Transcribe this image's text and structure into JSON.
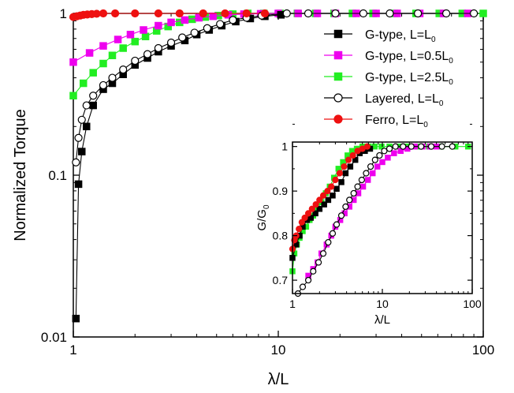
{
  "chart_data": [
    {
      "type": "line",
      "xlabel": "λ/L",
      "ylabel": "Normalized Torque",
      "xscale": "log",
      "yscale": "log",
      "xlim": [
        1,
        100
      ],
      "ylim": [
        0.01,
        1
      ],
      "xticks": [
        "1",
        "10",
        "100"
      ],
      "yticks": [
        "0.01",
        "0.1",
        "1"
      ],
      "grid": false,
      "legend_position": "top-right",
      "series": [
        {
          "name": "G-type, L=L0",
          "label_main": "G-type, L=L",
          "label_sub": "0",
          "color": "#000000",
          "marker": "square",
          "filled": true,
          "x": [
            1.03,
            1.06,
            1.1,
            1.16,
            1.25,
            1.4,
            1.55,
            1.75,
            2.0,
            2.3,
            2.6,
            3.0,
            3.5,
            4.0,
            4.6,
            5.3,
            6.2,
            7.3,
            8.6,
            10.3
          ],
          "y": [
            0.013,
            0.088,
            0.14,
            0.2,
            0.27,
            0.34,
            0.37,
            0.42,
            0.48,
            0.53,
            0.58,
            0.63,
            0.68,
            0.74,
            0.79,
            0.84,
            0.89,
            0.93,
            0.96,
            0.98
          ]
        },
        {
          "name": "G-type, L=0.5L0",
          "label_main": "G-type, L=0.5L",
          "label_sub": "0",
          "color": "#ee00ee",
          "marker": "square",
          "filled": true,
          "x": [
            1.0,
            1.2,
            1.4,
            1.65,
            1.9,
            2.2,
            2.6,
            3.0,
            3.5,
            4.1,
            4.8,
            5.7,
            6.8,
            8.2,
            10,
            12.5,
            15.5,
            19,
            24,
            30,
            38,
            49,
            64,
            84
          ],
          "y": [
            0.5,
            0.57,
            0.63,
            0.69,
            0.74,
            0.79,
            0.84,
            0.88,
            0.91,
            0.94,
            0.96,
            0.98,
            0.99,
            0.995,
            1,
            1,
            1,
            1,
            1,
            1,
            1,
            1,
            1,
            1
          ]
        },
        {
          "name": "G-type, L=2.5L0",
          "label_main": "G-type, L=2.5L",
          "label_sub": "0",
          "color": "#22ee22",
          "marker": "square",
          "filled": true,
          "x": [
            1.0,
            1.12,
            1.25,
            1.4,
            1.55,
            1.75,
            2.0,
            2.25,
            2.55,
            2.9,
            3.3,
            3.8,
            4.4,
            5.1,
            6.0,
            7.1,
            8.5,
            10.2,
            12.4,
            15.2,
            18.7,
            23,
            29,
            37,
            47,
            61,
            79,
            100
          ],
          "y": [
            0.31,
            0.37,
            0.43,
            0.49,
            0.55,
            0.61,
            0.67,
            0.72,
            0.78,
            0.83,
            0.88,
            0.92,
            0.95,
            0.97,
            0.99,
            1,
            1,
            1,
            1,
            1,
            1,
            1,
            1,
            1,
            1,
            1,
            1,
            1
          ]
        },
        {
          "name": "Layered, L=L0",
          "label_main": "Layered, L=L",
          "label_sub": "0",
          "color": "#000000",
          "marker": "circle",
          "filled": false,
          "x": [
            1.03,
            1.06,
            1.1,
            1.16,
            1.25,
            1.4,
            1.55,
            1.75,
            2.0,
            2.3,
            2.6,
            3.0,
            3.4,
            3.9,
            4.5,
            5.2,
            6.0,
            7.0,
            8.3,
            11,
            14,
            19,
            26,
            35,
            48,
            66,
            90
          ],
          "y": [
            0.12,
            0.17,
            0.22,
            0.27,
            0.31,
            0.36,
            0.4,
            0.45,
            0.51,
            0.56,
            0.61,
            0.66,
            0.71,
            0.76,
            0.81,
            0.86,
            0.91,
            0.94,
            0.97,
            1,
            1,
            1,
            1,
            1,
            1,
            1,
            1
          ]
        },
        {
          "name": "Ferro, L=L0",
          "label_main": "Ferro, L=L",
          "label_sub": "0",
          "color": "#ee1111",
          "marker": "circle",
          "filled": true,
          "x": [
            1.0,
            1.04,
            1.08,
            1.12,
            1.17,
            1.23,
            1.3,
            1.4,
            1.6,
            2.0,
            2.6,
            3.3,
            4.3,
            5.5,
            7.0,
            8.6
          ],
          "y": [
            0.95,
            0.96,
            0.97,
            0.98,
            0.985,
            0.99,
            0.995,
            1,
            1,
            1,
            1,
            1,
            1,
            1,
            1,
            1
          ]
        }
      ]
    },
    {
      "type": "line",
      "xlabel": "λ/L",
      "ylabel": "G/G0",
      "ylabel_main": "G/G",
      "ylabel_sub": "0",
      "xscale": "log",
      "yscale": "linear",
      "xlim": [
        1,
        100
      ],
      "ylim": [
        0.67,
        1.01
      ],
      "xticks": [
        "1",
        "10",
        "100"
      ],
      "yticks": [
        "0.7",
        "0.8",
        "0.9",
        "1"
      ],
      "grid": false,
      "series": [
        {
          "name": "G-type, L=L0",
          "color": "#000000",
          "marker": "square",
          "filled": true,
          "x": [
            1.0,
            1.1,
            1.2,
            1.3,
            1.45,
            1.6,
            1.8,
            2.0,
            2.25,
            2.5,
            2.8,
            3.1,
            3.5,
            3.9,
            4.4,
            5.0,
            5.6,
            6.4,
            7.3
          ],
          "y": [
            0.75,
            0.78,
            0.8,
            0.82,
            0.835,
            0.84,
            0.85,
            0.86,
            0.87,
            0.88,
            0.89,
            0.905,
            0.92,
            0.94,
            0.955,
            0.97,
            0.985,
            0.99,
            0.995
          ]
        },
        {
          "name": "G-type, L=0.5L0",
          "color": "#ee00ee",
          "marker": "square",
          "filled": true,
          "x": [
            1.5,
            1.7,
            1.9,
            2.1,
            2.4,
            2.7,
            3.0,
            3.4,
            3.8,
            4.3,
            4.8,
            5.4,
            6.1,
            6.9,
            7.8,
            8.8,
            10,
            11.5,
            13.5,
            16,
            19,
            23,
            28,
            34,
            40
          ],
          "y": [
            0.71,
            0.725,
            0.74,
            0.76,
            0.78,
            0.8,
            0.82,
            0.835,
            0.85,
            0.865,
            0.88,
            0.895,
            0.91,
            0.925,
            0.94,
            0.955,
            0.965,
            0.975,
            0.985,
            0.99,
            0.995,
            1,
            1,
            1,
            1
          ]
        },
        {
          "name": "G-type, L=2.5L0",
          "color": "#22ee22",
          "marker": "square",
          "filled": true,
          "x": [
            1.0,
            1.05,
            1.12,
            1.2,
            1.3,
            1.42,
            1.55,
            1.7,
            1.9,
            2.1,
            2.35,
            2.6,
            2.9,
            3.25,
            3.65,
            4.1,
            4.6,
            5.2,
            6.0,
            7.0,
            8.2,
            9.8,
            12,
            15,
            19,
            25,
            33,
            45,
            65,
            90
          ],
          "y": [
            0.72,
            0.76,
            0.78,
            0.795,
            0.81,
            0.82,
            0.835,
            0.845,
            0.86,
            0.875,
            0.895,
            0.91,
            0.93,
            0.95,
            0.965,
            0.98,
            0.99,
            0.995,
            1,
            1,
            1,
            1,
            1,
            1,
            1,
            1,
            1,
            1,
            1,
            1
          ]
        },
        {
          "name": "Layered, L=L0",
          "color": "#000000",
          "marker": "circle",
          "filled": false,
          "x": [
            1.15,
            1.3,
            1.5,
            1.7,
            1.95,
            2.2,
            2.5,
            2.8,
            3.1,
            3.5,
            3.9,
            4.3,
            4.8,
            5.3,
            5.9,
            6.6,
            7.4,
            8.3,
            9.3,
            10.5,
            12,
            14,
            17,
            21,
            27,
            35,
            46,
            60
          ],
          "y": [
            0.67,
            0.685,
            0.7,
            0.72,
            0.74,
            0.76,
            0.785,
            0.805,
            0.825,
            0.845,
            0.865,
            0.88,
            0.895,
            0.91,
            0.925,
            0.94,
            0.955,
            0.97,
            0.98,
            0.99,
            0.995,
            1,
            1,
            1,
            1,
            1,
            1,
            1
          ]
        },
        {
          "name": "Ferro, L=L0",
          "color": "#ee1111",
          "marker": "circle",
          "filled": true,
          "x": [
            1.0,
            1.05,
            1.1,
            1.18,
            1.27,
            1.37,
            1.5,
            1.65,
            1.82,
            2.0,
            2.2,
            2.45,
            2.7,
            3.0,
            3.35,
            3.75,
            4.2,
            4.7,
            5.3,
            6.0,
            6.8
          ],
          "y": [
            0.77,
            0.79,
            0.8,
            0.815,
            0.83,
            0.84,
            0.85,
            0.86,
            0.87,
            0.88,
            0.89,
            0.9,
            0.91,
            0.925,
            0.94,
            0.955,
            0.97,
            0.98,
            0.99,
            0.995,
            1
          ]
        }
      ]
    }
  ]
}
